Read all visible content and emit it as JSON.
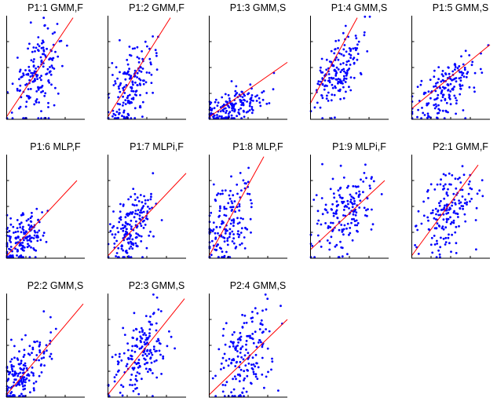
{
  "figure": {
    "colors": {
      "points": "#0000ff",
      "fit_line": "#ff0000",
      "axes": "#000000"
    }
  },
  "chart_data": [
    {
      "type": "scatter",
      "title": "P1:1 GMM,F",
      "fit_line": true,
      "grid": false,
      "xlabel": "",
      "ylabel": ""
    },
    {
      "type": "scatter",
      "title": "P1:2 GMM,F",
      "fit_line": true,
      "grid": false,
      "xlabel": "",
      "ylabel": ""
    },
    {
      "type": "scatter",
      "title": "P1:3 GMM,S",
      "fit_line": true,
      "grid": false,
      "xlabel": "",
      "ylabel": ""
    },
    {
      "type": "scatter",
      "title": "P1:4 GMM,S",
      "fit_line": true,
      "grid": false,
      "xlabel": "",
      "ylabel": ""
    },
    {
      "type": "scatter",
      "title": "P1:5 GMM,S",
      "fit_line": true,
      "grid": false,
      "xlabel": "",
      "ylabel": ""
    },
    {
      "type": "scatter",
      "title": "P1:6 MLP,F",
      "fit_line": true,
      "grid": false,
      "xlabel": "",
      "ylabel": ""
    },
    {
      "type": "scatter",
      "title": "P1:7 MLPi,F",
      "fit_line": true,
      "grid": false,
      "xlabel": "",
      "ylabel": ""
    },
    {
      "type": "scatter",
      "title": "P1:8 MLP,F",
      "fit_line": true,
      "grid": false,
      "xlabel": "",
      "ylabel": ""
    },
    {
      "type": "scatter",
      "title": "P1:9 MLPi,F",
      "fit_line": true,
      "grid": false,
      "xlabel": "",
      "ylabel": ""
    },
    {
      "type": "scatter",
      "title": "P2:1 GMM,F",
      "fit_line": true,
      "grid": false,
      "xlabel": "",
      "ylabel": ""
    },
    {
      "type": "scatter",
      "title": "P2:2 GMM,S",
      "fit_line": true,
      "grid": false,
      "xlabel": "",
      "ylabel": ""
    },
    {
      "type": "scatter",
      "title": "P2:3 GMM,S",
      "fit_line": true,
      "grid": false,
      "xlabel": "",
      "ylabel": ""
    },
    {
      "type": "scatter",
      "title": "P2:4 GMM,S",
      "fit_line": true,
      "grid": false,
      "xlabel": "",
      "ylabel": ""
    }
  ]
}
